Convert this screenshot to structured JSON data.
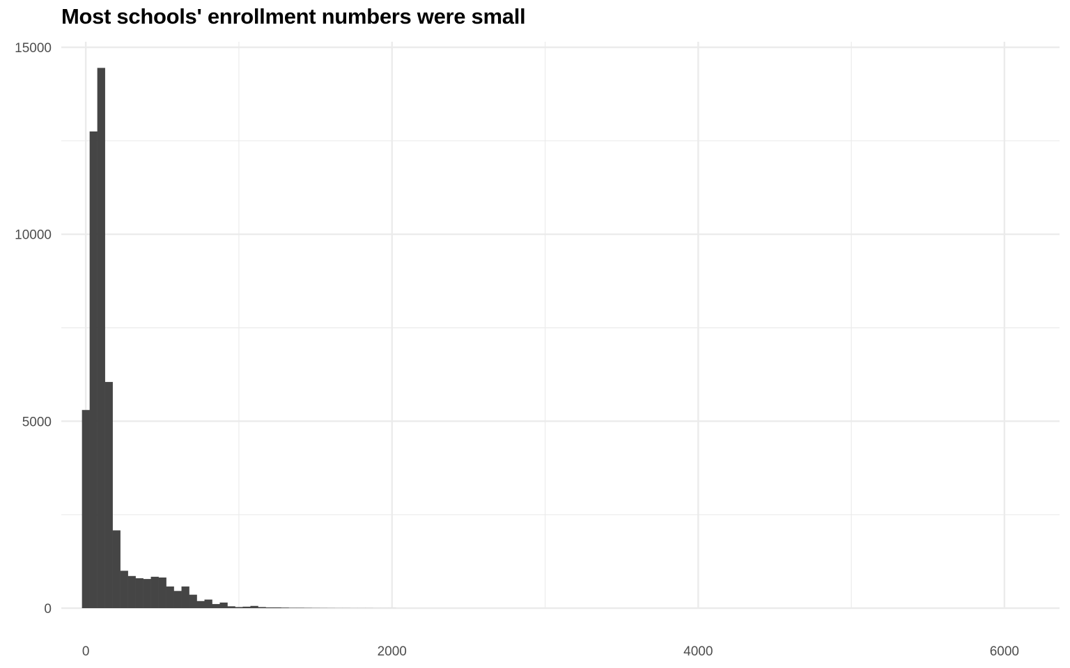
{
  "chart_data": {
    "type": "bar",
    "title": "Most schools' enrollment numbers were small",
    "xlabel": "",
    "ylabel": "",
    "xlim": [
      -160,
      6360
    ],
    "ylim": [
      0,
      15000
    ],
    "x_ticks": [
      0,
      2000,
      4000,
      6000
    ],
    "y_ticks": [
      0,
      5000,
      10000,
      15000
    ],
    "grid": true,
    "bin_width": 50,
    "bins": [
      {
        "x0": -25,
        "count": 5300
      },
      {
        "x0": 25,
        "count": 12750
      },
      {
        "x0": 75,
        "count": 14450
      },
      {
        "x0": 125,
        "count": 6050
      },
      {
        "x0": 175,
        "count": 2080
      },
      {
        "x0": 225,
        "count": 1000
      },
      {
        "x0": 275,
        "count": 860
      },
      {
        "x0": 325,
        "count": 800
      },
      {
        "x0": 375,
        "count": 780
      },
      {
        "x0": 425,
        "count": 840
      },
      {
        "x0": 475,
        "count": 820
      },
      {
        "x0": 525,
        "count": 580
      },
      {
        "x0": 575,
        "count": 460
      },
      {
        "x0": 625,
        "count": 580
      },
      {
        "x0": 675,
        "count": 360
      },
      {
        "x0": 725,
        "count": 190
      },
      {
        "x0": 775,
        "count": 230
      },
      {
        "x0": 825,
        "count": 110
      },
      {
        "x0": 875,
        "count": 150
      },
      {
        "x0": 925,
        "count": 50
      },
      {
        "x0": 975,
        "count": 30
      },
      {
        "x0": 1025,
        "count": 40
      },
      {
        "x0": 1075,
        "count": 60
      },
      {
        "x0": 1125,
        "count": 30
      },
      {
        "x0": 1175,
        "count": 20
      },
      {
        "x0": 1225,
        "count": 20
      },
      {
        "x0": 1275,
        "count": 15
      },
      {
        "x0": 1325,
        "count": 10
      },
      {
        "x0": 1375,
        "count": 10
      },
      {
        "x0": 1425,
        "count": 8
      },
      {
        "x0": 1475,
        "count": 6
      },
      {
        "x0": 1525,
        "count": 5
      },
      {
        "x0": 1575,
        "count": 4
      },
      {
        "x0": 1625,
        "count": 3
      },
      {
        "x0": 1675,
        "count": 3
      },
      {
        "x0": 1725,
        "count": 2
      },
      {
        "x0": 1775,
        "count": 2
      },
      {
        "x0": 1825,
        "count": 2
      },
      {
        "x0": 1875,
        "count": 1
      },
      {
        "x0": 1925,
        "count": 1
      },
      {
        "x0": 1975,
        "count": 1
      }
    ]
  }
}
